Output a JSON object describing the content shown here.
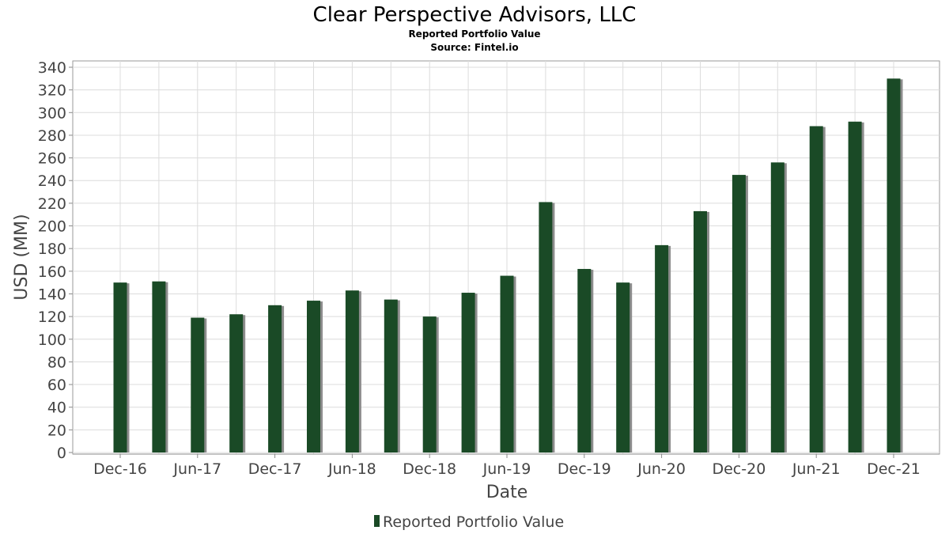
{
  "chart_data": {
    "type": "bar",
    "title": "Clear Perspective Advisors, LLC",
    "subtitle_1": "Reported Portfolio Value",
    "subtitle_2": "Source: Fintel.io",
    "xlabel": "Date",
    "ylabel": "USD (MM)",
    "ylim": [
      0,
      340
    ],
    "y_ticks": [
      0,
      20,
      40,
      60,
      80,
      100,
      120,
      140,
      160,
      180,
      200,
      220,
      240,
      260,
      280,
      300,
      320,
      340
    ],
    "x_tick_labels": [
      "Dec-16",
      "Jun-17",
      "Dec-17",
      "Jun-18",
      "Dec-18",
      "Jun-19",
      "Dec-19",
      "Jun-20",
      "Dec-20",
      "Jun-21",
      "Dec-21"
    ],
    "grid": true,
    "legend_position": "bottom-center",
    "bar_color": "#1a4a26",
    "bar_shadow_color": "#8c8c8c",
    "series": [
      {
        "name": "Reported Portfolio Value",
        "x": [
          "2016-12",
          "2017-03",
          "2017-06",
          "2017-09",
          "2017-12",
          "2018-03",
          "2018-06",
          "2018-09",
          "2018-12",
          "2019-03",
          "2019-06",
          "2019-09",
          "2019-12",
          "2020-03",
          "2020-06",
          "2020-09",
          "2020-12",
          "2021-03",
          "2021-06",
          "2021-09",
          "2021-12"
        ],
        "values": [
          150,
          151,
          119,
          122,
          130,
          134,
          143,
          135,
          120,
          141,
          156,
          221,
          162,
          150,
          183,
          213,
          245,
          256,
          288,
          292,
          330
        ]
      }
    ]
  }
}
